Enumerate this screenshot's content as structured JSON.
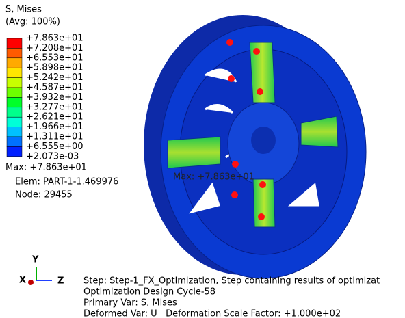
{
  "legend": {
    "title": "S, Mises",
    "subtitle": "(Avg: 100%)",
    "labels": [
      "+7.863e+01",
      "+7.208e+01",
      "+6.553e+01",
      "+5.898e+01",
      "+5.242e+01",
      "+4.587e+01",
      "+3.932e+01",
      "+3.277e+01",
      "+2.621e+01",
      "+1.966e+01",
      "+1.311e+01",
      "+6.555e+00",
      "+2.073e-03"
    ],
    "colors": [
      "#ff0000",
      "#ff5a00",
      "#ffaa00",
      "#ffe600",
      "#c8ff00",
      "#6eff00",
      "#00ff28",
      "#00ff8c",
      "#00ffd8",
      "#00c0ff",
      "#0070ff",
      "#0020ff"
    ]
  },
  "max_info": {
    "max": "Max: +7.863e+01",
    "elem": "Elem: PART-1-1.469976",
    "node": "Node: 29455"
  },
  "model_annotation": "Max: +7.863e+01",
  "triad": {
    "x": "X",
    "y": "Y",
    "z": "Z"
  },
  "status": [
    "Step: Step-1_FX_Optimization, Step containing results of optimizat",
    "Optimization Design Cycle-58",
    "Primary Var: S, Mises",
    "Deformed Var: U   Deformation Scale Factor: +1.000e+02"
  ]
}
